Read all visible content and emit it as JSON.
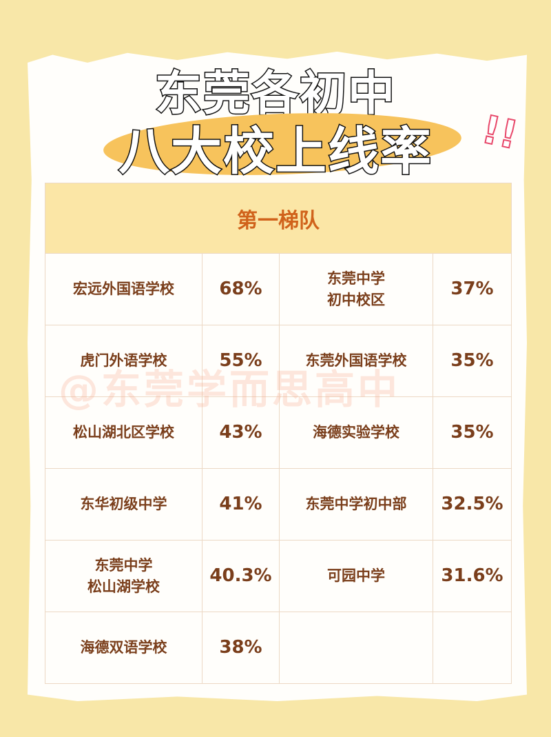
{
  "title_line1": "东莞各初中",
  "title_line2": "八大校上线率",
  "exclamation": "!!",
  "section_header": "第一梯队",
  "watermark": "@东莞学而思高中",
  "rows": [
    [
      {
        "school": "宏远外国语学校",
        "rate": "68%"
      },
      {
        "school": "东莞中学\n初中校区",
        "rate": "37%"
      }
    ],
    [
      {
        "school": "虎门外语学校",
        "rate": "55%"
      },
      {
        "school": "东莞外国语学校",
        "rate": "35%"
      }
    ],
    [
      {
        "school": "松山湖北区学校",
        "rate": "43%"
      },
      {
        "school": "海德实验学校",
        "rate": "35%"
      }
    ],
    [
      {
        "school": "东华初级中学",
        "rate": "41%"
      },
      {
        "school": "东莞中学初中部",
        "rate": "32.5%"
      }
    ],
    [
      {
        "school": "东莞中学\n松山湖学校",
        "rate": "40.3%"
      },
      {
        "school": "可园中学",
        "rate": "31.6%"
      }
    ],
    [
      {
        "school": "海德双语学校",
        "rate": "38%"
      },
      {
        "school": "",
        "rate": ""
      }
    ]
  ]
}
